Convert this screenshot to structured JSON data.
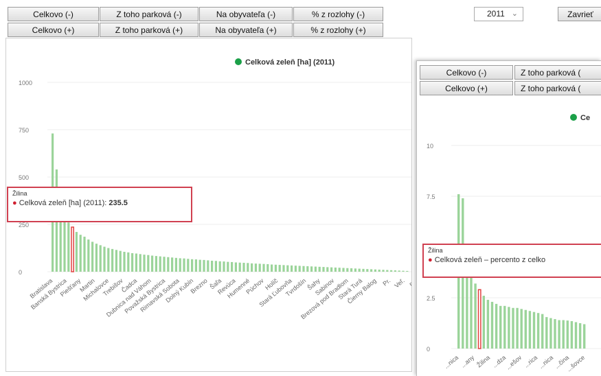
{
  "toolbar": {
    "row1": [
      "Celkovo (-)",
      "Z toho parková (-)",
      "Na obyvateľa (-)",
      "% z rozlohy (-)"
    ],
    "row2": [
      "Celkovo (+)",
      "Z toho parková (+)",
      "Na obyvateľa (+)",
      "% z rozlohy (+)"
    ],
    "year": "2011",
    "close_label": "Zavrieť"
  },
  "colors": {
    "bar": "#9bd49a",
    "highlight": "#e24040",
    "legend_dot": "#1ba048",
    "tooltip_border": "#d04050"
  },
  "chart_data": [
    {
      "type": "bar",
      "title": "",
      "legend": "Celková zeleň [ha] (2011)",
      "ylim": [
        0,
        1000
      ],
      "yticks": [
        "1000",
        "750",
        "500",
        "250",
        "0"
      ],
      "x_tick_labels": [
        "Bratislava",
        "Banská Bystrica",
        "Piešťany",
        "Martin",
        "Michalovce",
        "Trebišov",
        "Čadca",
        "Dubnica nad Váhom",
        "Považská Bystrica",
        "Rimavská Sobota",
        "Dolný Kubín",
        "Brezno",
        "Šaľa",
        "Revúca",
        "Humenné",
        "Púchov",
        "Holíč",
        "Stará Ľubovňa",
        "Tvrdošín",
        "Šahy",
        "Sabinov",
        "Brezová pod Bradlom",
        "Stará Turá",
        "Čierny Balog",
        "Pr.",
        "Veľ.",
        "Ba."
      ],
      "values": [
        730,
        540,
        420,
        320,
        260,
        235.5,
        210,
        195,
        185,
        170,
        158,
        148,
        140,
        132,
        125,
        120,
        115,
        110,
        105,
        102,
        98,
        96,
        93,
        90,
        88,
        85,
        83,
        81,
        79,
        77,
        75,
        73,
        71,
        70,
        68,
        66,
        65,
        63,
        62,
        60,
        58,
        57,
        55,
        54,
        52,
        51,
        49,
        48,
        47,
        46,
        44,
        43,
        42,
        41,
        40,
        38,
        37,
        36,
        35,
        34,
        33,
        32,
        31,
        30,
        29,
        28,
        27,
        26,
        25,
        24,
        23,
        22,
        21,
        20,
        19,
        18,
        17,
        16,
        15,
        14,
        13,
        12,
        11,
        10,
        9,
        8,
        7,
        6,
        5,
        4
      ],
      "highlight_index": 5,
      "tooltip": {
        "title": "Žilina",
        "series": "Celková zeleň [ha] (2011):",
        "value": "235.5"
      }
    },
    {
      "type": "bar",
      "legend": "Ce",
      "ylim": [
        0,
        10
      ],
      "yticks": [
        "10",
        "7.5",
        "5",
        "2.5",
        "0"
      ],
      "x_tick_labels": [
        "...nica",
        "...any",
        "Žilina",
        "...dza",
        "...ešov",
        "...rica",
        "...nica",
        "...čina",
        "...šovce"
      ],
      "values": [
        7.6,
        7.4,
        4.0,
        3.6,
        3.2,
        2.9,
        2.6,
        2.4,
        2.3,
        2.2,
        2.1,
        2.1,
        2.05,
        2.0,
        2.0,
        1.95,
        1.9,
        1.85,
        1.8,
        1.75,
        1.7,
        1.55,
        1.5,
        1.45,
        1.4,
        1.4,
        1.38,
        1.35,
        1.3,
        1.25,
        1.2
      ],
      "highlight_index": 5,
      "tooltip": {
        "title": "Žilina",
        "series": "Celková zeleň – percento z celko"
      }
    }
  ],
  "second_panel": {
    "row1": [
      "Celkovo (-)",
      "Z toho parková ("
    ],
    "row2": [
      "Celkovo (+)",
      "Z toho parková ("
    ]
  }
}
